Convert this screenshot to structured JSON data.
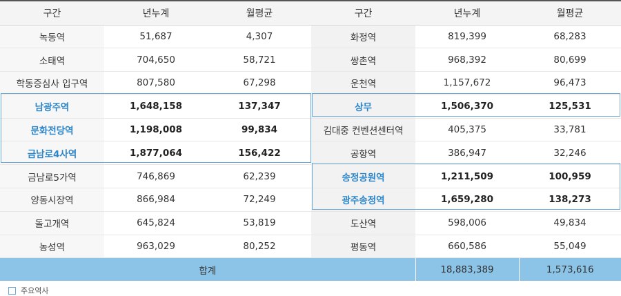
{
  "headers": [
    "구간",
    "년누계",
    "월평균",
    "구간",
    "년누계",
    "월평균"
  ],
  "rows": [
    {
      "l": [
        "녹동역",
        "51,687",
        "4,307"
      ],
      "r": [
        "화정역",
        "819,399",
        "68,283"
      ]
    },
    {
      "l": [
        "소태역",
        "704,650",
        "58,721"
      ],
      "r": [
        "쌍촌역",
        "968,392",
        "80,699"
      ]
    },
    {
      "l": [
        "학동증심사 입구역",
        "807,580",
        "67,298"
      ],
      "r": [
        "운천역",
        "1,157,672",
        "96,473"
      ]
    },
    {
      "l": [
        "남광주역",
        "1,648,158",
        "137,347"
      ],
      "r": [
        "상무",
        "1,506,370",
        "125,531"
      ]
    },
    {
      "l": [
        "문화전당역",
        "1,198,008",
        "99,834"
      ],
      "r": [
        "김대중 컨벤션센터역",
        "405,375",
        "33,781"
      ]
    },
    {
      "l": [
        "금남로4사역",
        "1,877,064",
        "156,422"
      ],
      "r": [
        "공항역",
        "386,947",
        "32,246"
      ]
    },
    {
      "l": [
        "금남로5가역",
        "746,869",
        "62,239"
      ],
      "r": [
        "송정공원역",
        "1,211,509",
        "100,959"
      ]
    },
    {
      "l": [
        "양동시장역",
        "866,984",
        "72,249"
      ],
      "r": [
        "광주송정역",
        "1,659,280",
        "138,273"
      ]
    },
    {
      "l": [
        "돌고개역",
        "645,824",
        "53,819"
      ],
      "r": [
        "도산역",
        "598,006",
        "49,834"
      ]
    },
    {
      "l": [
        "농성역",
        "963,029",
        "80,252"
      ],
      "r": [
        "평동역",
        "660,586",
        "55,049"
      ]
    }
  ],
  "total": {
    "label": "합계",
    "year": "18,883,389",
    "month": "1,573,616"
  },
  "legend": {
    "label": "주요역사"
  },
  "colors": {
    "highlight": "#2c86c9",
    "total_bg": "#8cc4e8",
    "box_border": "#6aa9d8"
  }
}
